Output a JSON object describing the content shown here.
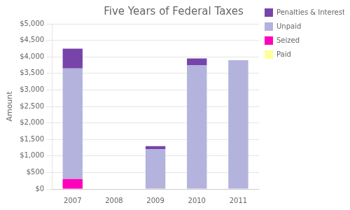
{
  "chart_data": {
    "type": "bar",
    "title": "Five Years of Federal Taxes",
    "ylabel": "Amount",
    "categories": [
      "2007",
      "2008",
      "2009",
      "2010",
      "2011"
    ],
    "series": [
      {
        "name": "Paid",
        "color": "#ffff99",
        "values": [
          0,
          0,
          0,
          0,
          0
        ]
      },
      {
        "name": "Seized",
        "color": "#ff00bb",
        "values": [
          300,
          0,
          0,
          0,
          0
        ]
      },
      {
        "name": "Unpaid",
        "color": "#b3b3dd",
        "values": [
          3350,
          0,
          1200,
          3750,
          3900
        ]
      },
      {
        "name": "Penalties & Interest",
        "color": "#7744aa",
        "values": [
          600,
          0,
          100,
          200,
          0
        ]
      }
    ],
    "stacked": true,
    "ylim": [
      0,
      5000
    ],
    "yticks": [
      {
        "value": 0,
        "label": "$0"
      },
      {
        "value": 500,
        "label": "$500"
      },
      {
        "value": 1000,
        "label": "$1,000"
      },
      {
        "value": 1500,
        "label": "$1,500"
      },
      {
        "value": 2000,
        "label": "$2,000"
      },
      {
        "value": 2500,
        "label": "$2,500"
      },
      {
        "value": 3000,
        "label": "$3,000"
      },
      {
        "value": 3500,
        "label": "$3,500"
      },
      {
        "value": 4000,
        "label": "$4,000"
      },
      {
        "value": 4500,
        "label": "$4,500"
      },
      {
        "value": 5000,
        "label": "$5,000"
      }
    ],
    "grid": true,
    "legend": "right"
  }
}
